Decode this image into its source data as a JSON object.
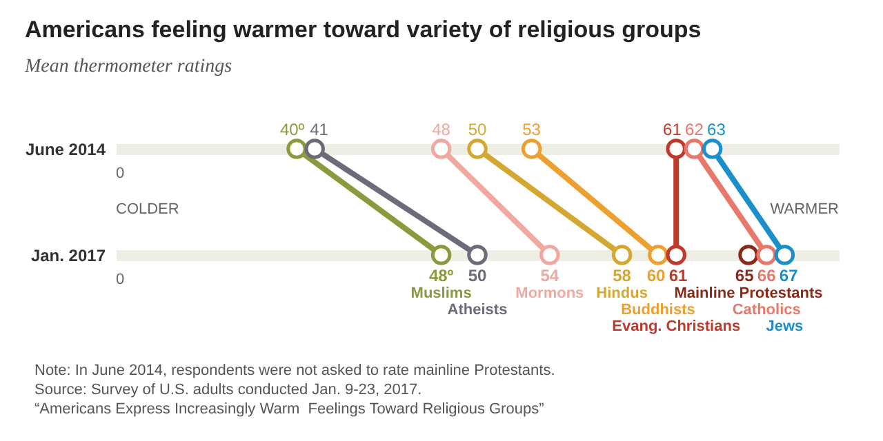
{
  "chart_data": {
    "type": "line",
    "orientation": "horizontal",
    "title": "Americans feeling warmer toward variety of religious groups",
    "subtitle": "Mean thermometer ratings",
    "categories": [
      "June 2014",
      "Jan. 2017"
    ],
    "xlim": [
      30,
      70
    ],
    "grid": "y",
    "marker": "circle",
    "data_labels": true,
    "series": [
      {
        "name": "Muslims",
        "color": "#8a9a3c",
        "values": [
          40,
          48
        ],
        "value_labels": [
          "40º",
          "48º"
        ]
      },
      {
        "name": "Atheists",
        "color": "#6e6a7a",
        "values": [
          41,
          50
        ]
      },
      {
        "name": "Mormons",
        "color": "#f0a8a0",
        "values": [
          48,
          54
        ]
      },
      {
        "name": "Hindus",
        "color": "#d4a830",
        "values": [
          50,
          58
        ]
      },
      {
        "name": "Buddhists",
        "color": "#eda030",
        "values": [
          53,
          60
        ]
      },
      {
        "name": "Evang. Christians",
        "color": "#c0392b",
        "values": [
          61,
          61
        ]
      },
      {
        "name": "Mainline Protestants",
        "color": "#8b2a18",
        "values": [
          null,
          65
        ]
      },
      {
        "name": "Catholics",
        "color": "#e8786a",
        "values": [
          62,
          66
        ]
      },
      {
        "name": "Jews",
        "color": "#1a8fc9",
        "values": [
          63,
          67
        ]
      }
    ],
    "annotations": [
      "0",
      "COLDER",
      "WARMER",
      "0",
      "Note: In June 2014, respondents were not asked to rate mainline Protestants.",
      "Source: Survey of U.S. adults conducted Jan. 9-23, 2017.",
      "“Americans Express Increasingly Warm  Feelings Toward Religious Groups”"
    ]
  }
}
